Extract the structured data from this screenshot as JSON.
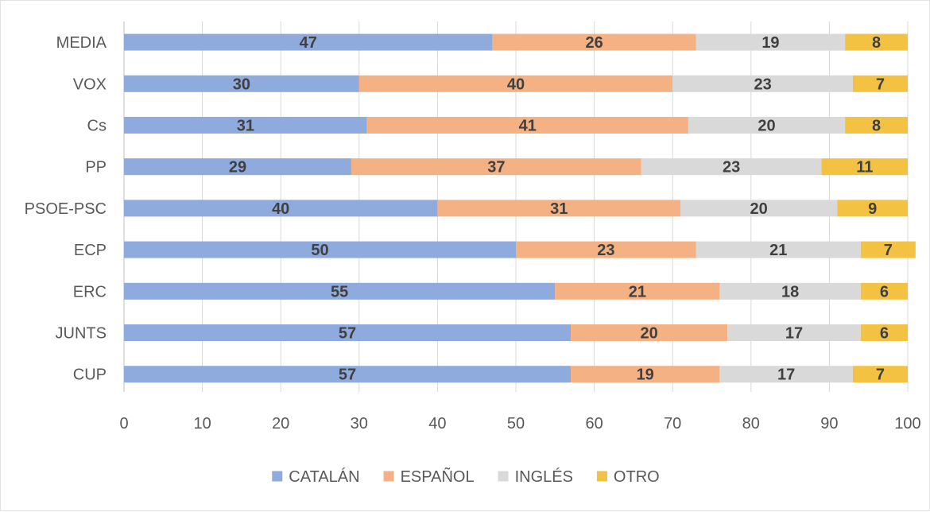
{
  "chart_data": {
    "type": "bar",
    "orientation": "horizontal",
    "stacked": true,
    "categories": [
      "MEDIA",
      "VOX",
      "Cs",
      "PP",
      "PSOE-PSC",
      "ECP",
      "ERC",
      "JUNTS",
      "CUP"
    ],
    "series": [
      {
        "name": "CATALÁN",
        "color": "#8faadc",
        "values": [
          47,
          30,
          31,
          29,
          40,
          50,
          55,
          57,
          57
        ]
      },
      {
        "name": "ESPAÑOL",
        "color": "#f4b183",
        "values": [
          26,
          40,
          41,
          37,
          31,
          23,
          21,
          20,
          19
        ]
      },
      {
        "name": "INGLÉS",
        "color": "#d9d9d9",
        "values": [
          19,
          23,
          20,
          23,
          20,
          21,
          18,
          17,
          17
        ]
      },
      {
        "name": "OTRO",
        "color": "#f4c242",
        "values": [
          8,
          7,
          8,
          11,
          9,
          7,
          6,
          6,
          7
        ]
      }
    ],
    "xlim": [
      0,
      100
    ],
    "xticks": [
      0,
      10,
      20,
      30,
      40,
      50,
      60,
      70,
      80,
      90,
      100
    ],
    "grid": "vertical",
    "legend": "bottom",
    "title": "",
    "xlabel": "",
    "ylabel": ""
  }
}
